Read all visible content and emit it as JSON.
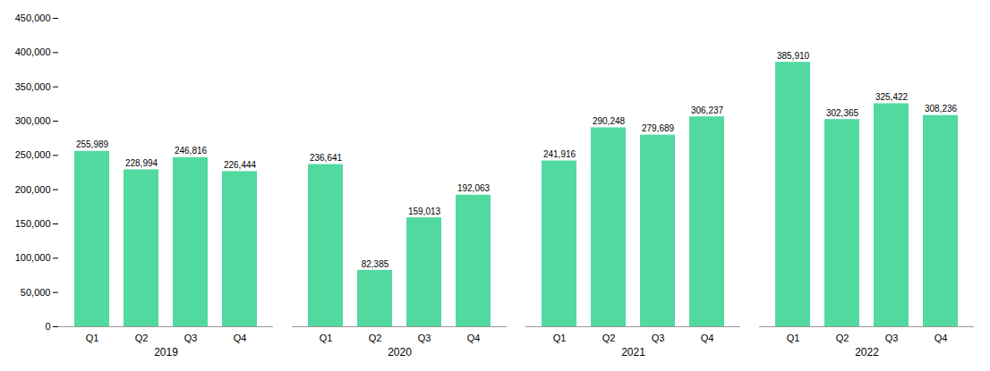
{
  "chart_data": {
    "type": "bar",
    "categories": [
      "Q1",
      "Q2",
      "Q3",
      "Q4"
    ],
    "groups": [
      {
        "name": "2019",
        "values": [
          255989,
          228994,
          246816,
          226444
        ],
        "value_labels": [
          "255,989",
          "228,994",
          "246,816",
          "226,444"
        ]
      },
      {
        "name": "2020",
        "values": [
          236641,
          82385,
          159013,
          192063
        ],
        "value_labels": [
          "236,641",
          "82,385",
          "159,013",
          "192,063"
        ]
      },
      {
        "name": "2021",
        "values": [
          241916,
          290248,
          279689,
          306237
        ],
        "value_labels": [
          "241,916",
          "290,248",
          "279,689",
          "306,237"
        ]
      },
      {
        "name": "2022",
        "values": [
          385910,
          302365,
          325422,
          308236
        ],
        "value_labels": [
          "385,910",
          "302,365",
          "325,422",
          "308,236"
        ]
      }
    ],
    "color": "#52d9a0",
    "ylim": [
      0,
      450000
    ],
    "yticks": [
      0,
      {
        "value": 50000,
        "label": "50,000"
      },
      {
        "value": 100000,
        "label": "100,000"
      },
      {
        "value": 150000,
        "label": "150,000"
      },
      {
        "value": 200000,
        "label": "200,000"
      },
      {
        "value": 250000,
        "label": "250,000"
      },
      {
        "value": 300000,
        "label": "300,000"
      },
      {
        "value": 350000,
        "label": "350,000"
      },
      {
        "value": 400000,
        "label": "400,000"
      },
      {
        "value": 450000,
        "label": "450,000"
      }
    ],
    "grid": false,
    "data_labels": true
  }
}
